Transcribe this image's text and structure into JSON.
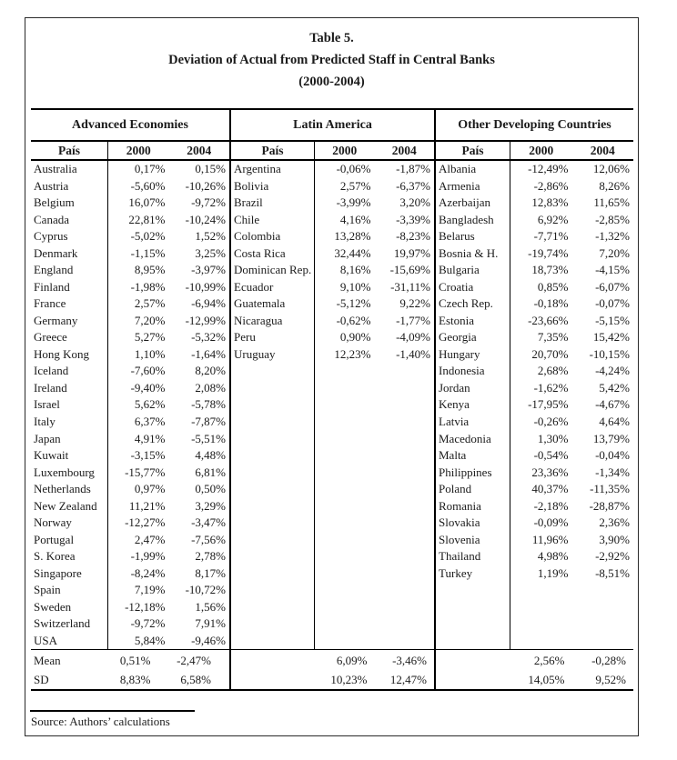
{
  "page": {
    "title_line1": "Table 5.",
    "title_line2": "Deviation of Actual from Predicted Staff in Central Banks",
    "title_line3": "(2000-2004)",
    "source": "Source: Authors’ calculations"
  },
  "table": {
    "col_headers": {
      "country": "País",
      "y2000": "2000",
      "y2004": "2004"
    },
    "summary_labels": {
      "mean": "Mean",
      "sd": "SD"
    },
    "sections": [
      {
        "title": "Advanced Economies",
        "rows": [
          [
            "Australia",
            "0,17%",
            "0,15%"
          ],
          [
            "Austria",
            "-5,60%",
            "-10,26%"
          ],
          [
            "Belgium",
            "16,07%",
            "-9,72%"
          ],
          [
            "Canada",
            "22,81%",
            "-10,24%"
          ],
          [
            "Cyprus",
            "-5,02%",
            "1,52%"
          ],
          [
            "Denmark",
            "-1,15%",
            "3,25%"
          ],
          [
            "England",
            "8,95%",
            "-3,97%"
          ],
          [
            "Finland",
            "-1,98%",
            "-10,99%"
          ],
          [
            "France",
            "2,57%",
            "-6,94%"
          ],
          [
            "Germany",
            "7,20%",
            "-12,99%"
          ],
          [
            "Greece",
            "5,27%",
            "-5,32%"
          ],
          [
            "Hong Kong",
            "1,10%",
            "-1,64%"
          ],
          [
            "Iceland",
            "-7,60%",
            "8,20%"
          ],
          [
            "Ireland",
            "-9,40%",
            "2,08%"
          ],
          [
            "Israel",
            "5,62%",
            "-5,78%"
          ],
          [
            "Italy",
            "6,37%",
            "-7,87%"
          ],
          [
            "Japan",
            "4,91%",
            "-5,51%"
          ],
          [
            "Kuwait",
            "-3,15%",
            "4,48%"
          ],
          [
            "Luxembourg",
            "-15,77%",
            "6,81%"
          ],
          [
            "Netherlands",
            "0,97%",
            "0,50%"
          ],
          [
            "New Zealand",
            "11,21%",
            "3,29%"
          ],
          [
            "Norway",
            "-12,27%",
            "-3,47%"
          ],
          [
            "Portugal",
            "2,47%",
            "-7,56%"
          ],
          [
            "S. Korea",
            "-1,99%",
            "2,78%"
          ],
          [
            "Singapore",
            "-8,24%",
            "8,17%"
          ],
          [
            "Spain",
            "7,19%",
            "-10,72%"
          ],
          [
            "Sweden",
            "-12,18%",
            "1,56%"
          ],
          [
            "Switzerland",
            "-9,72%",
            "7,91%"
          ],
          [
            "USA",
            "5,84%",
            "-9,46%"
          ]
        ],
        "mean": [
          "0,51%",
          "-2,47%"
        ],
        "sd": [
          "8,83%",
          "6,58%"
        ]
      },
      {
        "title": "Latin America",
        "rows": [
          [
            "Argentina",
            "-0,06%",
            "-1,87%"
          ],
          [
            "Bolivia",
            "2,57%",
            "-6,37%"
          ],
          [
            "Brazil",
            "-3,99%",
            "3,20%"
          ],
          [
            "Chile",
            "4,16%",
            "-3,39%"
          ],
          [
            "Colombia",
            "13,28%",
            "-8,23%"
          ],
          [
            "Costa Rica",
            "32,44%",
            "19,97%"
          ],
          [
            "Dominican Rep.",
            "8,16%",
            "-15,69%"
          ],
          [
            "Ecuador",
            "9,10%",
            "-31,11%"
          ],
          [
            "Guatemala",
            "-5,12%",
            "9,22%"
          ],
          [
            "Nicaragua",
            "-0,62%",
            "-1,77%"
          ],
          [
            "Peru",
            "0,90%",
            "-4,09%"
          ],
          [
            "Uruguay",
            "12,23%",
            "-1,40%"
          ]
        ],
        "mean": [
          "6,09%",
          "-3,46%"
        ],
        "sd": [
          "10,23%",
          "12,47%"
        ]
      },
      {
        "title": "Other Developing Countries",
        "rows": [
          [
            "Albania",
            "-12,49%",
            "12,06%"
          ],
          [
            "Armenia",
            "-2,86%",
            "8,26%"
          ],
          [
            "Azerbaijan",
            "12,83%",
            "11,65%"
          ],
          [
            "Bangladesh",
            "6,92%",
            "-2,85%"
          ],
          [
            "Belarus",
            "-7,71%",
            "-1,32%"
          ],
          [
            "Bosnia & H.",
            "-19,74%",
            "7,20%"
          ],
          [
            "Bulgaria",
            "18,73%",
            "-4,15%"
          ],
          [
            "Croatia",
            "0,85%",
            "-6,07%"
          ],
          [
            "Czech Rep.",
            "-0,18%",
            "-0,07%"
          ],
          [
            "Estonia",
            "-23,66%",
            "-5,15%"
          ],
          [
            "Georgia",
            "7,35%",
            "15,42%"
          ],
          [
            "Hungary",
            "20,70%",
            "-10,15%"
          ],
          [
            "Indonesia",
            "2,68%",
            "-4,24%"
          ],
          [
            "Jordan",
            "-1,62%",
            "5,42%"
          ],
          [
            "Kenya",
            "-17,95%",
            "-4,67%"
          ],
          [
            "Latvia",
            "-0,26%",
            "4,64%"
          ],
          [
            "Macedonia",
            "1,30%",
            "13,79%"
          ],
          [
            "Malta",
            "-0,54%",
            "-0,04%"
          ],
          [
            "Philippines",
            "23,36%",
            "-1,34%"
          ],
          [
            "Poland",
            "40,37%",
            "-11,35%"
          ],
          [
            "Romania",
            "-2,18%",
            "-28,87%"
          ],
          [
            "Slovakia",
            "-0,09%",
            "2,36%"
          ],
          [
            "Slovenia",
            "11,96%",
            "3,90%"
          ],
          [
            "Thailand",
            "4,98%",
            "-2,92%"
          ],
          [
            "Turkey",
            "1,19%",
            "-8,51%"
          ]
        ],
        "mean": [
          "2,56%",
          "-0,28%"
        ],
        "sd": [
          "14,05%",
          "9,52%"
        ]
      }
    ]
  }
}
